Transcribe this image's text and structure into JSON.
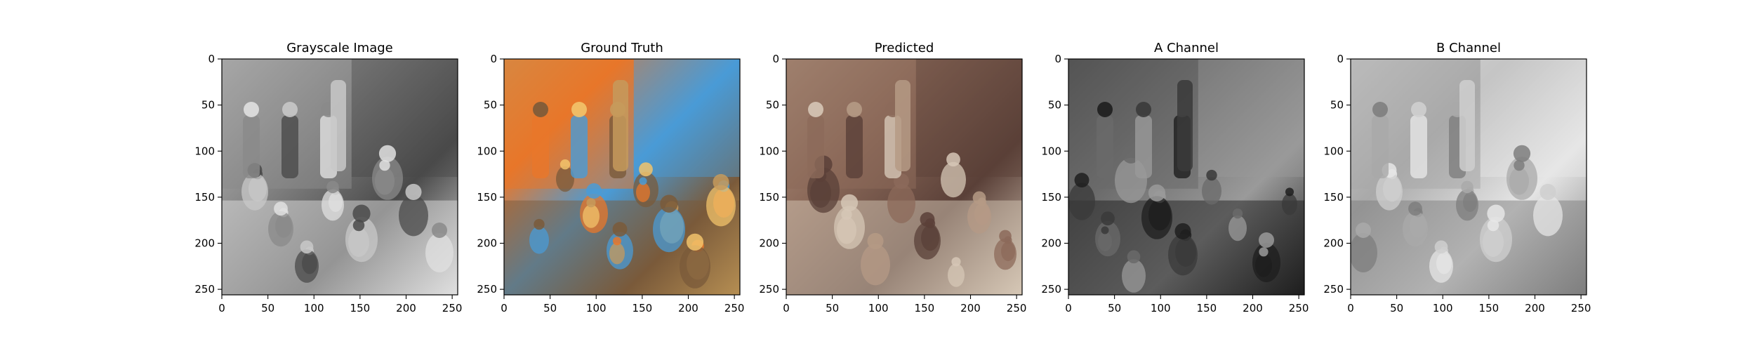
{
  "figure": {
    "panels": [
      {
        "id": "grayscale",
        "title": "Grayscale Image",
        "image_semantic": "grayscale-classroom-photo",
        "palette": [
          "#c8c8c8",
          "#8a8a8a",
          "#4a4a4a",
          "#e0e0e0"
        ]
      },
      {
        "id": "ground-truth",
        "title": "Ground Truth",
        "image_semantic": "color-classroom-photo",
        "palette": [
          "#c69a5c",
          "#e8772a",
          "#4a9bd6",
          "#7a5a3a",
          "#f2c36b"
        ]
      },
      {
        "id": "predicted",
        "title": "Predicted",
        "image_semantic": "predicted-colorized-classroom-photo",
        "palette": [
          "#b59a85",
          "#8c6a5a",
          "#5a4038",
          "#d6c7b6"
        ]
      },
      {
        "id": "a-channel",
        "title": "A Channel",
        "image_semantic": "a-channel-map",
        "palette": [
          "#3a3a3a",
          "#6a6a6a",
          "#9a9a9a",
          "#1e1e1e"
        ]
      },
      {
        "id": "b-channel",
        "title": "B Channel",
        "image_semantic": "b-channel-map",
        "palette": [
          "#cfcfcf",
          "#a9a9a9",
          "#e6e6e6",
          "#7e7e7e"
        ]
      }
    ],
    "axes": {
      "x_ticks": [
        "0",
        "50",
        "100",
        "150",
        "200",
        "250"
      ],
      "y_ticks": [
        "0",
        "50",
        "100",
        "150",
        "200",
        "250"
      ],
      "x_range": [
        0,
        256
      ],
      "y_range": [
        0,
        256
      ]
    }
  }
}
